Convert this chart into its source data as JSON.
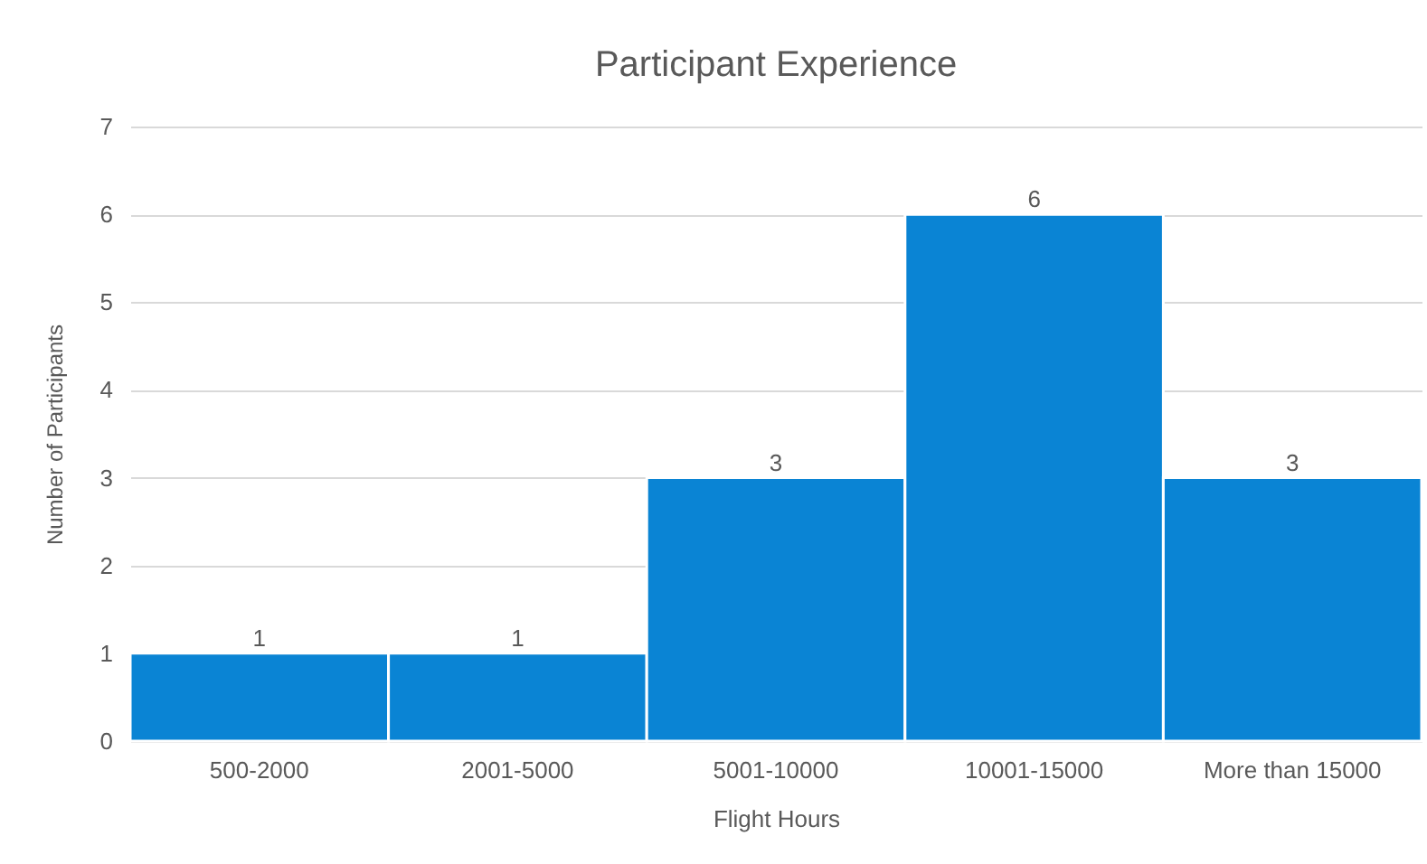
{
  "chart_data": {
    "type": "bar",
    "title": "Participant Experience",
    "xlabel": "Flight Hours",
    "ylabel": "Number of Participants",
    "categories": [
      "500-2000",
      "2001-5000",
      "5001-10000",
      "10001-15000",
      "More than 15000"
    ],
    "values": [
      1,
      1,
      3,
      6,
      3
    ],
    "color": "#0a84d4",
    "ylim": [
      0,
      7
    ],
    "yticks": [
      0,
      1,
      2,
      3,
      4,
      5,
      6,
      7
    ],
    "grid": "y",
    "data_labels": true
  }
}
